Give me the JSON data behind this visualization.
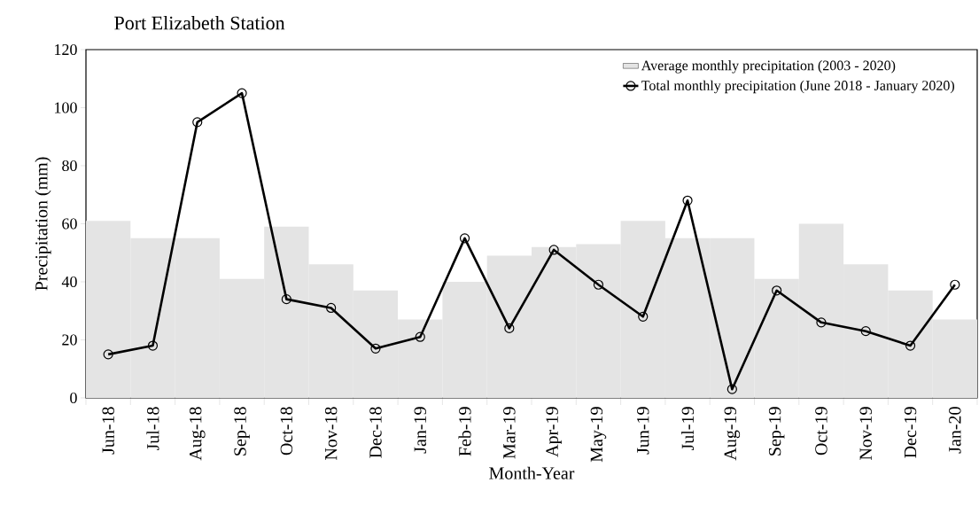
{
  "chart_data": {
    "type": "line",
    "title": "Port Elizabeth Station",
    "xlabel": "Month-Year",
    "ylabel": "Precipitation (mm)",
    "categories": [
      "Jun-18",
      "Jul-18",
      "Aug-18",
      "Sep-18",
      "Oct-18",
      "Nov-18",
      "Dec-18",
      "Jan-19",
      "Feb-19",
      "Mar-19",
      "Apr-19",
      "May-19",
      "Jun-19",
      "Jul-19",
      "Aug-19",
      "Sep-19",
      "Oct-19",
      "Nov-19",
      "Dec-19",
      "Jan-20"
    ],
    "series": [
      {
        "name": "Average monthly precipitation (2003 - 2020)",
        "type": "bar",
        "color": "#e4e4e4",
        "values": [
          61,
          55,
          55,
          41,
          59,
          46,
          37,
          27,
          40,
          49,
          52,
          53,
          61,
          55,
          55,
          41,
          60,
          46,
          37,
          27
        ]
      },
      {
        "name": "Total monthly precipitation (June 2018 - January 2020)",
        "color": "#000000",
        "marker": "circle",
        "values": [
          15,
          18,
          95,
          105,
          34,
          31,
          17,
          21,
          55,
          24,
          51,
          39,
          28,
          68,
          3,
          37,
          26,
          23,
          18,
          39
        ]
      }
    ],
    "ylim": [
      0,
      120
    ],
    "yticks": [
      0,
      20,
      40,
      60,
      80,
      100,
      120
    ],
    "legend": "top right"
  }
}
